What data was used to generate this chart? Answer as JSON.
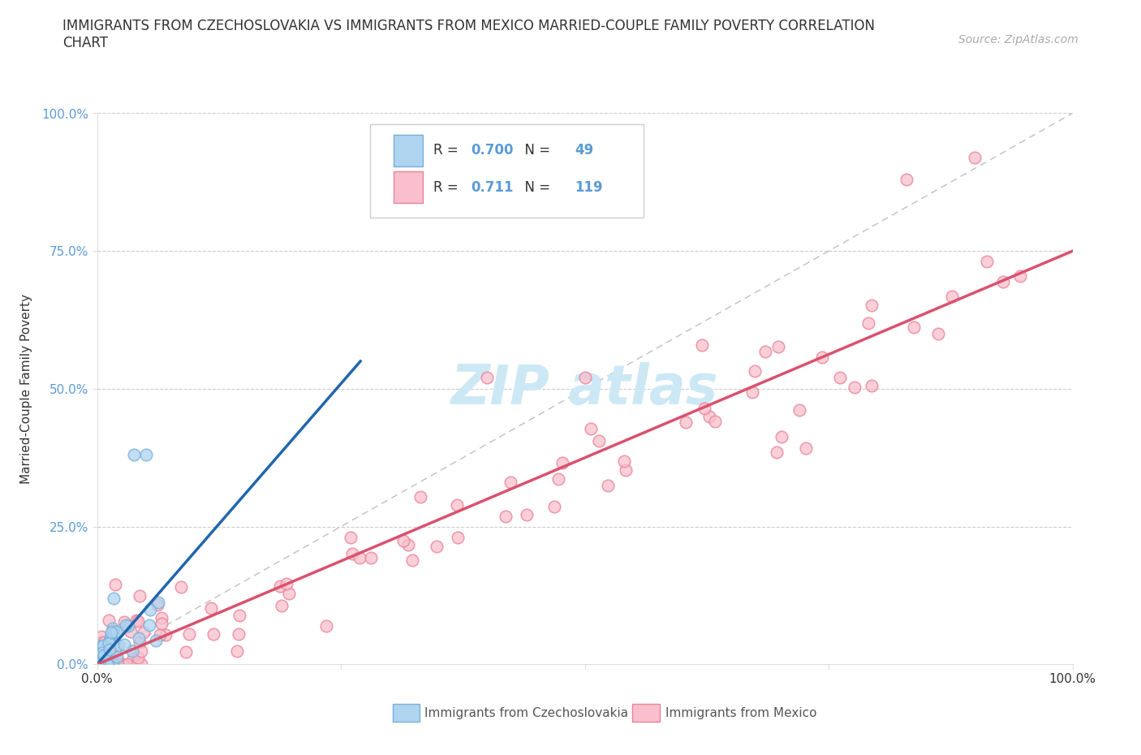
{
  "title_line1": "IMMIGRANTS FROM CZECHOSLOVAKIA VS IMMIGRANTS FROM MEXICO MARRIED-COUPLE FAMILY POVERTY CORRELATION",
  "title_line2": "CHART",
  "source": "Source: ZipAtlas.com",
  "ylabel_label": "Married-Couple Family Poverty",
  "legend_czech_label": "Immigrants from Czechoslovakia",
  "legend_mexico_label": "Immigrants from Mexico",
  "czech_color": "#aed4f0",
  "czech_edge": "#7ab0d8",
  "mexico_color": "#f9bfcc",
  "mexico_edge": "#e8849a",
  "czech_R": 0.7,
  "czech_N": 49,
  "mexico_R": 0.711,
  "mexico_N": 119,
  "background_color": "#ffffff",
  "grid_color": "#cccccc",
  "title_color": "#333333",
  "ytick_color": "#5b9bd5",
  "xtick_color": "#333333",
  "ylabel_color": "#333333",
  "watermark_color": "#cde8f5",
  "czech_line_color": "#2166ac",
  "mexico_line_color": "#d9526e",
  "diag_color": "#c0c0c0"
}
